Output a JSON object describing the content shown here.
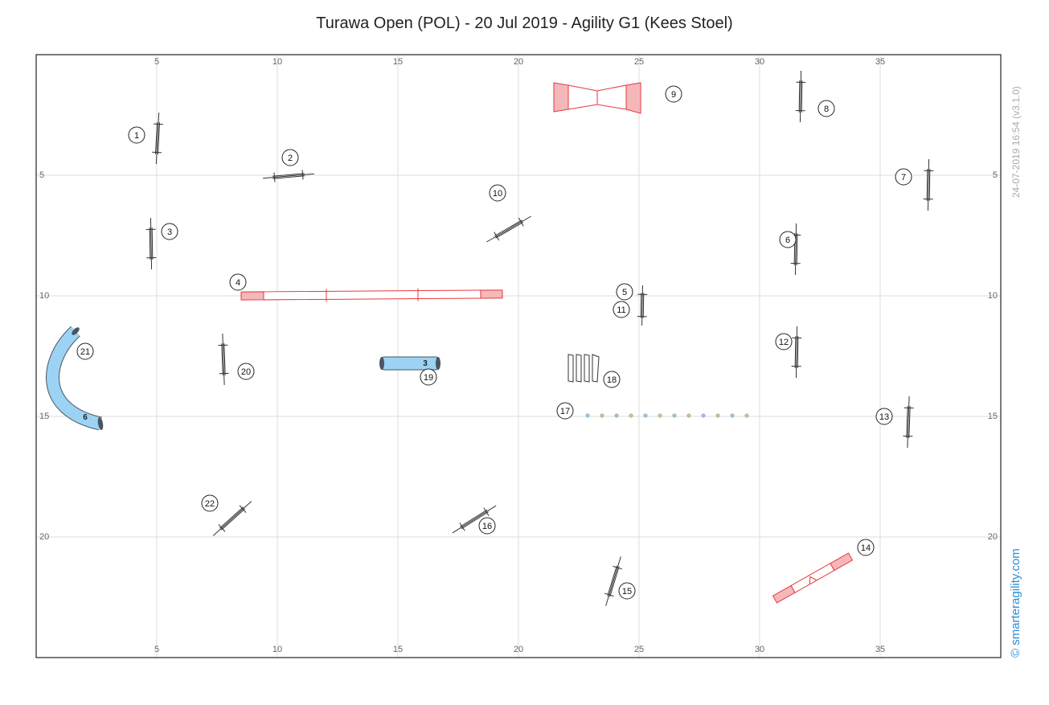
{
  "title": "Turawa Open (POL) - 20 Jul 2019 - Agility G1 (Kees Stoel)",
  "timestamp": "24-07-2019 16:54  (v3.1.0)",
  "credit": "© smarteragility.com",
  "axes": {
    "x_ticks": [
      "5",
      "10",
      "15",
      "20",
      "25",
      "30",
      "35"
    ],
    "y_ticks": [
      "5",
      "10",
      "15",
      "20"
    ]
  },
  "colors": {
    "contact_red": "#e8383d",
    "contact_fill": "#f5b8ba",
    "tunnel_blue": "#9cd3f4",
    "tunnel_end": "#4a5560",
    "grid": "#dddddd",
    "jump": "#333333",
    "weave_blue": "#8ec5ec",
    "weave_green": "#b9cc83"
  },
  "obstacles": [
    {
      "num": "1",
      "type": "jump"
    },
    {
      "num": "2",
      "type": "jump"
    },
    {
      "num": "3",
      "type": "jump"
    },
    {
      "num": "4",
      "type": "dogwalk"
    },
    {
      "num": "5",
      "type": "jump"
    },
    {
      "num": "6",
      "type": "jump"
    },
    {
      "num": "7",
      "type": "jump"
    },
    {
      "num": "8",
      "type": "jump"
    },
    {
      "num": "9",
      "type": "a-frame"
    },
    {
      "num": "10",
      "type": "jump"
    },
    {
      "num": "11",
      "type": "jump"
    },
    {
      "num": "12",
      "type": "jump"
    },
    {
      "num": "13",
      "type": "jump"
    },
    {
      "num": "14",
      "type": "seesaw"
    },
    {
      "num": "15",
      "type": "jump"
    },
    {
      "num": "16",
      "type": "jump"
    },
    {
      "num": "17",
      "type": "weave-poles"
    },
    {
      "num": "18",
      "type": "long-jump"
    },
    {
      "num": "19",
      "type": "tunnel"
    },
    {
      "num": "20",
      "type": "jump"
    },
    {
      "num": "21",
      "type": "tunnel"
    },
    {
      "num": "22",
      "type": "jump"
    }
  ],
  "tunnels": [
    {
      "label": "3"
    },
    {
      "label": "6"
    }
  ]
}
